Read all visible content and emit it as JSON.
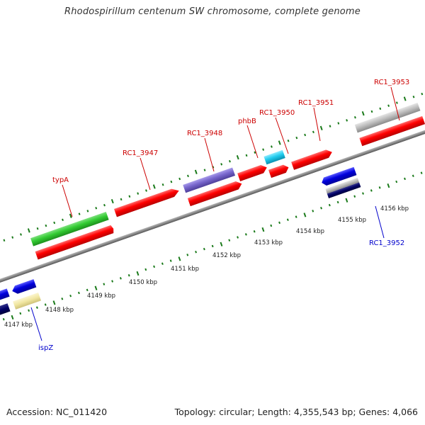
{
  "title": "Rhodospirillum centenum SW chromosome, complete genome",
  "footer": {
    "accession": "Accession: NC_011420",
    "topology": "Topology: circular; Length: 4,355,543 bp; Genes: 4,066"
  },
  "colors": {
    "background": "#ffffff",
    "backbone": "#888888",
    "forward_label": "#cc0000",
    "reverse_label": "#0000cc",
    "tick": "#1a7a1a",
    "cds": "#ff0000",
    "cds_forward_green": "#33cc33",
    "cds_forward_purple": "#7766cc",
    "cds_forward_cyan": "#22ccee",
    "cds_forward_grey": "#bbbbbb",
    "cds_reverse_blue": "#0000dd",
    "cds_reverse_pale_yellow": "#f0e6a0",
    "cds_reverse_navy": "#000066"
  },
  "scale_labels": [
    "4147 kbp",
    "4148 kbp",
    "4149 kbp",
    "4150 kbp",
    "4151 kbp",
    "4152 kbp",
    "4153 kbp",
    "4154 kbp",
    "4155 kbp",
    "4156 kbp"
  ],
  "forward_gene_labels": [
    "typA",
    "RC1_3947",
    "RC1_3948",
    "phbB",
    "RC1_3950",
    "RC1_3951",
    "RC1_3953"
  ],
  "reverse_gene_labels": [
    "ispZ",
    "RC1_3952"
  ]
}
